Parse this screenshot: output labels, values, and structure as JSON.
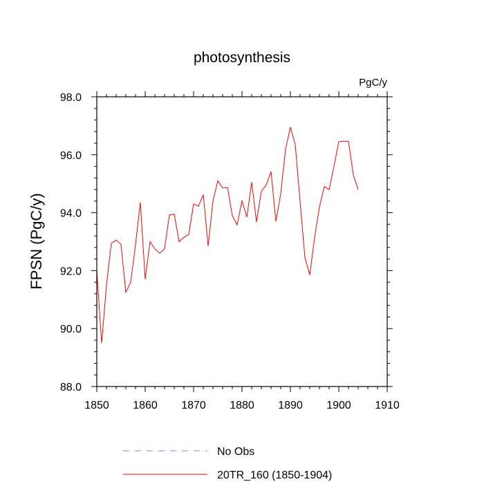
{
  "chart_data": {
    "type": "line",
    "title": "photosynthesis",
    "units": "PgC/y",
    "ylabel": "FPSN  (PgC/y)",
    "xlabel": "",
    "xlim": [
      1850,
      1910
    ],
    "ylim": [
      88.0,
      98.0
    ],
    "x_ticks": [
      "1850",
      "1860",
      "1870",
      "1880",
      "1890",
      "1900",
      "1910"
    ],
    "y_ticks": [
      "88.0",
      "90.0",
      "92.0",
      "94.0",
      "96.0",
      "98.0"
    ],
    "x_tick_values": [
      1850,
      1860,
      1870,
      1880,
      1890,
      1900,
      1910
    ],
    "y_tick_values": [
      88,
      90,
      92,
      94,
      96,
      98
    ],
    "grid": false,
    "legend_position": "bottom-center",
    "series": [
      {
        "name": "20TR_160 (1850-1904)",
        "color": "#ff0000",
        "dash": "solid",
        "x": [
          1850,
          1851,
          1852,
          1853,
          1854,
          1855,
          1856,
          1857,
          1858,
          1859,
          1860,
          1861,
          1862,
          1863,
          1864,
          1865,
          1866,
          1867,
          1868,
          1869,
          1870,
          1871,
          1872,
          1873,
          1874,
          1875,
          1876,
          1877,
          1878,
          1879,
          1880,
          1881,
          1882,
          1883,
          1884,
          1885,
          1886,
          1887,
          1888,
          1889,
          1890,
          1891,
          1892,
          1893,
          1894,
          1895,
          1896,
          1897,
          1898,
          1899,
          1900,
          1901,
          1902,
          1903,
          1904
        ],
        "values": [
          92.0,
          89.5,
          91.5,
          92.95,
          93.05,
          92.9,
          91.25,
          91.6,
          92.9,
          94.35,
          91.7,
          93.0,
          92.75,
          92.6,
          92.75,
          93.92,
          93.95,
          93.0,
          93.15,
          93.25,
          94.3,
          94.22,
          94.62,
          92.85,
          94.4,
          95.1,
          94.85,
          94.87,
          93.9,
          93.58,
          94.42,
          93.85,
          95.05,
          93.68,
          94.75,
          94.95,
          95.42,
          93.7,
          94.65,
          96.2,
          96.95,
          96.35,
          94.4,
          92.45,
          91.85,
          93.15,
          94.2,
          94.9,
          94.8,
          95.6,
          96.45,
          96.47,
          96.46,
          95.3,
          94.8
        ]
      },
      {
        "name": "No Obs",
        "color": "#8080ff",
        "dash": "dashed",
        "x": [],
        "values": []
      }
    ]
  }
}
